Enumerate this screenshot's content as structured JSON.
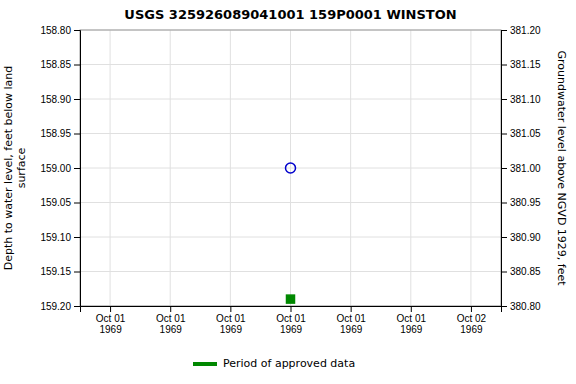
{
  "chart_data": {
    "type": "scatter",
    "title": "USGS 325926089041001 159P0001  WINSTON",
    "ylabel": "Depth to water level, feet below land\nsurface",
    "y2label": "Groundwater level above NGVD 1929, feet",
    "categories": [
      "Oct 01\n1969",
      "Oct 01\n1969",
      "Oct 01\n1969",
      "Oct 01\n1969",
      "Oct 01\n1969",
      "Oct 01\n1969",
      "Oct 02\n1969"
    ],
    "series": [
      {
        "color": "#0000cc",
        "marker": "circle-open",
        "values": [
          null,
          null,
          null,
          159.0,
          null,
          null,
          null
        ]
      },
      {
        "name": "Period of approved data",
        "color": "#008800",
        "marker": "square",
        "values": [
          null,
          null,
          null,
          159.19,
          null,
          null,
          null
        ]
      }
    ],
    "ylim": [
      159.2,
      158.8
    ],
    "yticks": [
      {
        "value": 158.8,
        "label": "158.80"
      },
      158.85,
      {
        "value": 158.9,
        "label": "158.90"
      },
      158.95,
      {
        "value": 159.0,
        "label": "159.00"
      },
      159.05,
      {
        "value": 159.1,
        "label": "159.10"
      },
      159.15,
      {
        "value": 159.2,
        "label": "159.20"
      }
    ],
    "y2lim": [
      380.8,
      381.2
    ],
    "y2ticks": [
      {
        "value": 381.2,
        "label": "381.20"
      },
      381.15,
      {
        "value": 381.1,
        "label": "381.10"
      },
      381.05,
      {
        "value": 381.0,
        "label": "381.00"
      },
      380.95,
      {
        "value": 380.9,
        "label": "380.90"
      },
      380.85,
      {
        "value": 380.8,
        "label": "380.80"
      }
    ],
    "grid": true,
    "legend": "bottom"
  }
}
